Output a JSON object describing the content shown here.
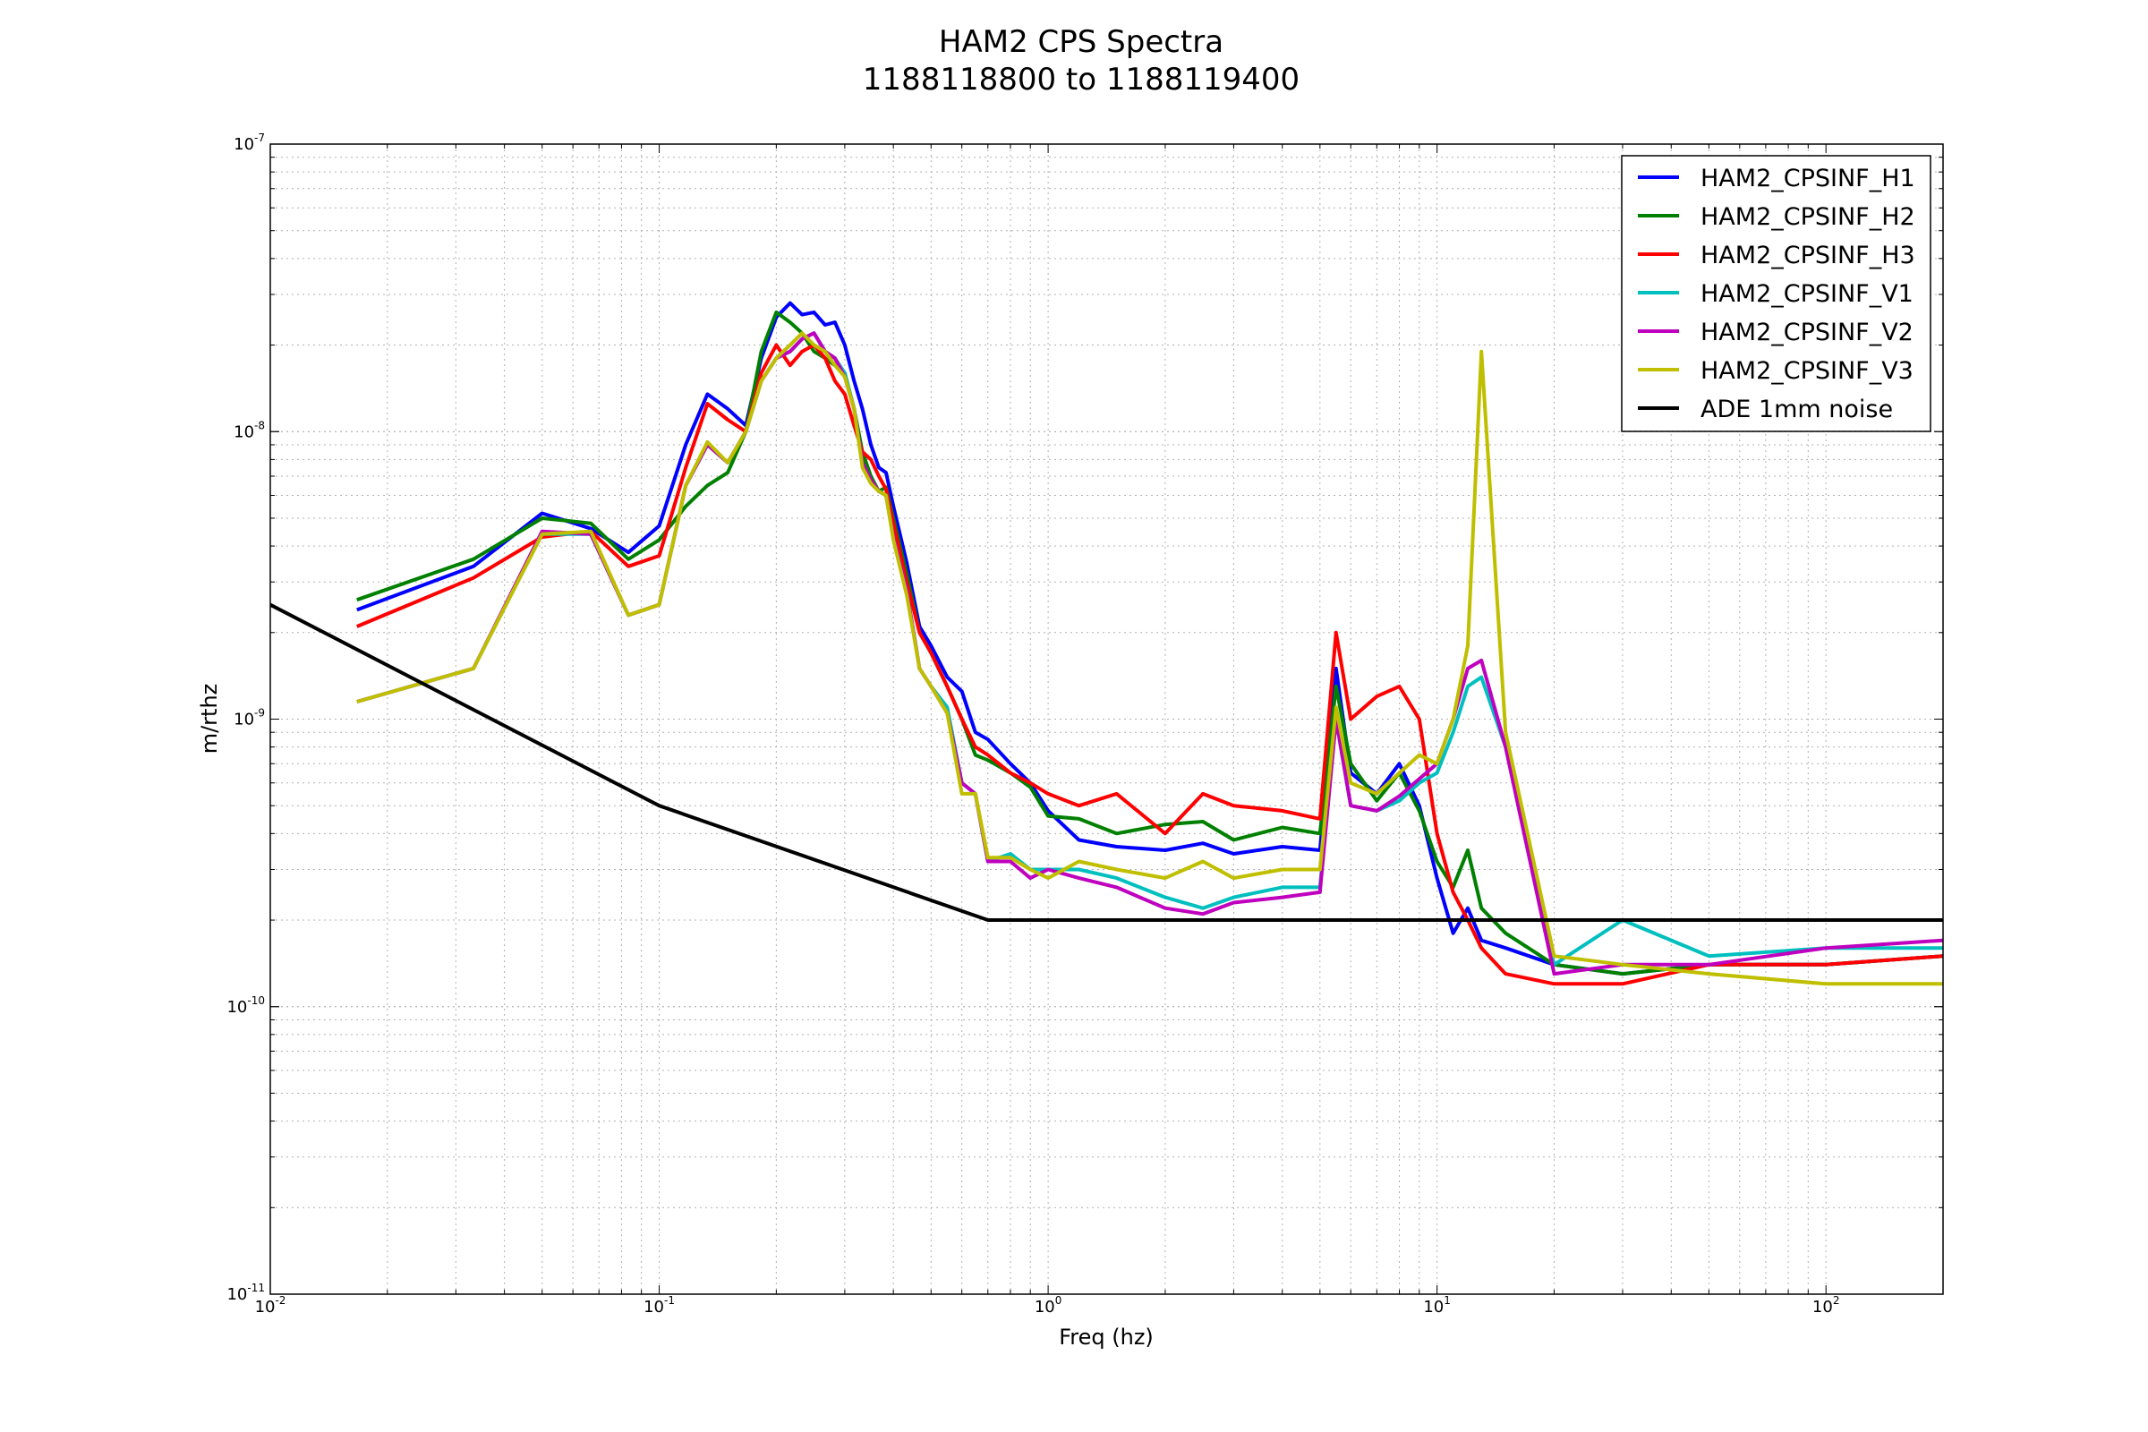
{
  "chart_data": {
    "type": "line",
    "title": "HAM2 CPS Spectra",
    "subtitle": "1188118800 to 1188119400",
    "xlabel": "Freq (hz)",
    "ylabel": "m/rthz",
    "xscale": "log",
    "yscale": "log",
    "xlim": [
      0.01,
      200
    ],
    "ylim": [
      1e-11,
      1e-07
    ],
    "x_tick_labels": [
      {
        "value": 0.01,
        "base": "10",
        "exp": "-2"
      },
      {
        "value": 0.1,
        "base": "10",
        "exp": "-1"
      },
      {
        "value": 1,
        "base": "10",
        "exp": "0"
      },
      {
        "value": 10,
        "base": "10",
        "exp": "1"
      },
      {
        "value": 100,
        "base": "10",
        "exp": "2"
      }
    ],
    "y_tick_labels": [
      {
        "value": 1e-07,
        "base": "10",
        "exp": "-7"
      },
      {
        "value": 1e-08,
        "base": "10",
        "exp": "-8"
      },
      {
        "value": 1e-09,
        "base": "10",
        "exp": "-9"
      },
      {
        "value": 1e-10,
        "base": "10",
        "exp": "-10"
      },
      {
        "value": 1e-11,
        "base": "10",
        "exp": "-11"
      }
    ],
    "grid": true,
    "legend_position": "top-right",
    "series": [
      {
        "name": "HAM2_CPSINF_H1",
        "color": "#0000ff",
        "x": [
          0.0167,
          0.0333,
          0.05,
          0.0667,
          0.0833,
          0.1,
          0.117,
          0.133,
          0.15,
          0.167,
          0.183,
          0.2,
          0.217,
          0.233,
          0.25,
          0.267,
          0.283,
          0.3,
          0.317,
          0.333,
          0.35,
          0.367,
          0.383,
          0.4,
          0.433,
          0.467,
          0.5,
          0.55,
          0.6,
          0.65,
          0.7,
          0.8,
          0.9,
          1.0,
          1.2,
          1.5,
          2.0,
          2.5,
          3.0,
          4.0,
          5.0,
          5.5,
          6.0,
          7.0,
          8.0,
          9.0,
          10.0,
          11.0,
          12.0,
          13.0,
          15.0,
          20.0,
          30.0,
          50.0,
          100.0,
          200.0
        ],
        "y": [
          2.4e-09,
          3.4e-09,
          5.2e-09,
          4.6e-09,
          3.8e-09,
          4.7e-09,
          9e-09,
          1.35e-08,
          1.2e-08,
          1.05e-08,
          1.8e-08,
          2.5e-08,
          2.8e-08,
          2.55e-08,
          2.6e-08,
          2.35e-08,
          2.4e-08,
          2e-08,
          1.5e-08,
          1.2e-08,
          9e-09,
          7.5e-09,
          7.2e-09,
          5.5e-09,
          3.5e-09,
          2.1e-09,
          1.8e-09,
          1.4e-09,
          1.25e-09,
          9e-10,
          8.5e-10,
          7e-10,
          6e-10,
          4.8e-10,
          3.8e-10,
          3.6e-10,
          3.5e-10,
          3.7e-10,
          3.4e-10,
          3.6e-10,
          3.5e-10,
          1.5e-09,
          6.5e-10,
          5.5e-10,
          7e-10,
          5e-10,
          2.8e-10,
          1.8e-10,
          2.2e-10,
          1.7e-10,
          1.6e-10,
          1.4e-10,
          1.3e-10,
          1.4e-10,
          1.4e-10,
          1.5e-10
        ]
      },
      {
        "name": "HAM2_CPSINF_H2",
        "color": "#008000",
        "x": [
          0.0167,
          0.0333,
          0.05,
          0.0667,
          0.0833,
          0.1,
          0.117,
          0.133,
          0.15,
          0.167,
          0.183,
          0.2,
          0.217,
          0.233,
          0.25,
          0.267,
          0.283,
          0.3,
          0.317,
          0.333,
          0.35,
          0.367,
          0.383,
          0.4,
          0.433,
          0.467,
          0.5,
          0.55,
          0.6,
          0.65,
          0.7,
          0.8,
          0.9,
          1.0,
          1.2,
          1.5,
          2.0,
          2.5,
          3.0,
          4.0,
          5.0,
          5.5,
          6.0,
          7.0,
          8.0,
          9.0,
          10.0,
          11.0,
          12.0,
          13.0,
          15.0,
          20.0,
          30.0,
          50.0,
          100.0,
          200.0
        ],
        "y": [
          2.6e-09,
          3.6e-09,
          5e-09,
          4.8e-09,
          3.6e-09,
          4.2e-09,
          5.5e-09,
          6.5e-09,
          7.2e-09,
          1e-08,
          1.9e-08,
          2.6e-08,
          2.4e-08,
          2.2e-08,
          1.9e-08,
          1.8e-08,
          1.7e-08,
          1.6e-08,
          1.2e-08,
          8.5e-09,
          7e-09,
          6.2e-09,
          6.4e-09,
          5e-09,
          3.2e-09,
          2e-09,
          1.7e-09,
          1.3e-09,
          1e-09,
          7.5e-10,
          7.2e-10,
          6.5e-10,
          5.8e-10,
          4.6e-10,
          4.5e-10,
          4e-10,
          4.3e-10,
          4.4e-10,
          3.8e-10,
          4.2e-10,
          4e-10,
          1.3e-09,
          7e-10,
          5.2e-10,
          6.5e-10,
          4.8e-10,
          3.2e-10,
          2.6e-10,
          3.5e-10,
          2.2e-10,
          1.8e-10,
          1.4e-10,
          1.3e-10,
          1.4e-10,
          1.4e-10,
          1.5e-10
        ]
      },
      {
        "name": "HAM2_CPSINF_H3",
        "color": "#ff0000",
        "x": [
          0.0167,
          0.0333,
          0.05,
          0.0667,
          0.0833,
          0.1,
          0.117,
          0.133,
          0.15,
          0.167,
          0.183,
          0.2,
          0.217,
          0.233,
          0.25,
          0.267,
          0.283,
          0.3,
          0.317,
          0.333,
          0.35,
          0.367,
          0.383,
          0.4,
          0.433,
          0.467,
          0.5,
          0.55,
          0.6,
          0.65,
          0.7,
          0.8,
          0.9,
          1.0,
          1.2,
          1.5,
          2.0,
          2.5,
          3.0,
          4.0,
          5.0,
          5.5,
          6.0,
          7.0,
          8.0,
          9.0,
          10.0,
          11.0,
          12.0,
          13.0,
          15.0,
          20.0,
          30.0,
          50.0,
          100.0,
          200.0
        ],
        "y": [
          2.1e-09,
          3.1e-09,
          4.3e-09,
          4.5e-09,
          3.4e-09,
          3.7e-09,
          7.5e-09,
          1.25e-08,
          1.1e-08,
          1e-08,
          1.6e-08,
          2e-08,
          1.7e-08,
          1.9e-08,
          2e-08,
          1.8e-08,
          1.5e-08,
          1.35e-08,
          1.05e-08,
          8.5e-09,
          8e-09,
          7e-09,
          6.3e-09,
          4.8e-09,
          3e-09,
          2e-09,
          1.7e-09,
          1.3e-09,
          1e-09,
          8e-10,
          7.5e-10,
          6.5e-10,
          6e-10,
          5.5e-10,
          5e-10,
          5.5e-10,
          4e-10,
          5.5e-10,
          5e-10,
          4.8e-10,
          4.5e-10,
          2e-09,
          1e-09,
          1.2e-09,
          1.3e-09,
          1e-09,
          4e-10,
          2.5e-10,
          2e-10,
          1.6e-10,
          1.3e-10,
          1.2e-10,
          1.2e-10,
          1.4e-10,
          1.4e-10,
          1.5e-10
        ]
      },
      {
        "name": "HAM2_CPSINF_V1",
        "color": "#00bfbf",
        "x": [
          0.0167,
          0.0333,
          0.05,
          0.0667,
          0.0833,
          0.1,
          0.117,
          0.133,
          0.15,
          0.167,
          0.183,
          0.2,
          0.217,
          0.233,
          0.25,
          0.267,
          0.283,
          0.3,
          0.317,
          0.333,
          0.35,
          0.367,
          0.383,
          0.4,
          0.433,
          0.467,
          0.5,
          0.55,
          0.6,
          0.65,
          0.7,
          0.8,
          0.9,
          1.0,
          1.2,
          1.5,
          2.0,
          2.5,
          3.0,
          4.0,
          5.0,
          5.5,
          6.0,
          7.0,
          8.0,
          9.0,
          10.0,
          11.0,
          12.0,
          13.0,
          15.0,
          20.0,
          30.0,
          50.0,
          100.0,
          200.0
        ],
        "y": [
          1.15e-09,
          1.5e-09,
          4.4e-09,
          4.4e-09,
          2.3e-09,
          2.5e-09,
          6.5e-09,
          9e-09,
          7.8e-09,
          1e-08,
          1.5e-08,
          1.8e-08,
          1.9e-08,
          2.1e-08,
          2.2e-08,
          1.9e-08,
          1.8e-08,
          1.6e-08,
          1.2e-08,
          7.8e-09,
          6.8e-09,
          6.2e-09,
          6e-09,
          4.3e-09,
          2.8e-09,
          1.5e-09,
          1.3e-09,
          1.1e-09,
          6e-10,
          5.5e-10,
          3.2e-10,
          3.4e-10,
          3e-10,
          3e-10,
          3e-10,
          2.8e-10,
          2.4e-10,
          2.2e-10,
          2.4e-10,
          2.6e-10,
          2.6e-10,
          1e-09,
          5e-10,
          4.8e-10,
          5.2e-10,
          6e-10,
          6.5e-10,
          9e-10,
          1.3e-09,
          1.4e-09,
          8e-10,
          1.4e-10,
          2e-10,
          1.5e-10,
          1.6e-10,
          1.6e-10
        ]
      },
      {
        "name": "HAM2_CPSINF_V2",
        "color": "#bf00bf",
        "x": [
          0.0167,
          0.0333,
          0.05,
          0.0667,
          0.0833,
          0.1,
          0.117,
          0.133,
          0.15,
          0.167,
          0.183,
          0.2,
          0.217,
          0.233,
          0.25,
          0.267,
          0.283,
          0.3,
          0.317,
          0.333,
          0.35,
          0.367,
          0.383,
          0.4,
          0.433,
          0.467,
          0.5,
          0.55,
          0.6,
          0.65,
          0.7,
          0.8,
          0.9,
          1.0,
          1.2,
          1.5,
          2.0,
          2.5,
          3.0,
          4.0,
          5.0,
          5.5,
          6.0,
          7.0,
          8.0,
          9.0,
          10.0,
          11.0,
          12.0,
          13.0,
          15.0,
          20.0,
          30.0,
          50.0,
          100.0,
          200.0
        ],
        "y": [
          1.15e-09,
          1.5e-09,
          4.5e-09,
          4.4e-09,
          2.3e-09,
          2.5e-09,
          6.5e-09,
          9e-09,
          7.8e-09,
          1e-08,
          1.5e-08,
          1.8e-08,
          1.9e-08,
          2.1e-08,
          2.2e-08,
          1.9e-08,
          1.8e-08,
          1.55e-08,
          1.2e-08,
          7.8e-09,
          6.8e-09,
          6.2e-09,
          6e-09,
          4.3e-09,
          2.8e-09,
          1.5e-09,
          1.3e-09,
          1.05e-09,
          6e-10,
          5.5e-10,
          3.2e-10,
          3.2e-10,
          2.8e-10,
          3e-10,
          2.8e-10,
          2.6e-10,
          2.2e-10,
          2.1e-10,
          2.3e-10,
          2.4e-10,
          2.5e-10,
          1e-09,
          5e-10,
          4.8e-10,
          5.4e-10,
          6.2e-10,
          7e-10,
          1e-09,
          1.5e-09,
          1.6e-09,
          8e-10,
          1.3e-10,
          1.4e-10,
          1.4e-10,
          1.6e-10,
          1.7e-10
        ]
      },
      {
        "name": "HAM2_CPSINF_V3",
        "color": "#bfbf00",
        "x": [
          0.0167,
          0.0333,
          0.05,
          0.0667,
          0.0833,
          0.1,
          0.117,
          0.133,
          0.15,
          0.167,
          0.183,
          0.2,
          0.217,
          0.233,
          0.25,
          0.267,
          0.283,
          0.3,
          0.317,
          0.333,
          0.35,
          0.367,
          0.383,
          0.4,
          0.433,
          0.467,
          0.5,
          0.55,
          0.6,
          0.65,
          0.7,
          0.8,
          0.9,
          1.0,
          1.2,
          1.5,
          2.0,
          2.5,
          3.0,
          4.0,
          5.0,
          5.5,
          6.0,
          7.0,
          8.0,
          9.0,
          10.0,
          11.0,
          12.0,
          13.0,
          15.0,
          20.0,
          30.0,
          50.0,
          100.0,
          200.0
        ],
        "y": [
          1.15e-09,
          1.5e-09,
          4.4e-09,
          4.5e-09,
          2.3e-09,
          2.5e-09,
          6.5e-09,
          9.2e-09,
          7.8e-09,
          1e-08,
          1.5e-08,
          1.8e-08,
          2e-08,
          2.2e-08,
          2e-08,
          1.9e-08,
          1.7e-08,
          1.55e-08,
          1.2e-08,
          7.5e-09,
          6.6e-09,
          6.2e-09,
          6e-09,
          4.2e-09,
          2.7e-09,
          1.5e-09,
          1.3e-09,
          1.05e-09,
          5.5e-10,
          5.5e-10,
          3.3e-10,
          3.3e-10,
          3e-10,
          2.8e-10,
          3.2e-10,
          3e-10,
          2.8e-10,
          3.2e-10,
          2.8e-10,
          3e-10,
          3e-10,
          1.1e-09,
          6e-10,
          5.5e-10,
          6.5e-10,
          7.5e-10,
          7e-10,
          1e-09,
          1.8e-09,
          1.9e-08,
          9e-10,
          1.5e-10,
          1.4e-10,
          1.3e-10,
          1.2e-10,
          1.2e-10
        ]
      },
      {
        "name": "ADE 1mm noise",
        "color": "#000000",
        "x": [
          0.01,
          0.1,
          0.7,
          200
        ],
        "y": [
          2.5e-09,
          5e-10,
          2e-10,
          2e-10
        ]
      }
    ]
  }
}
